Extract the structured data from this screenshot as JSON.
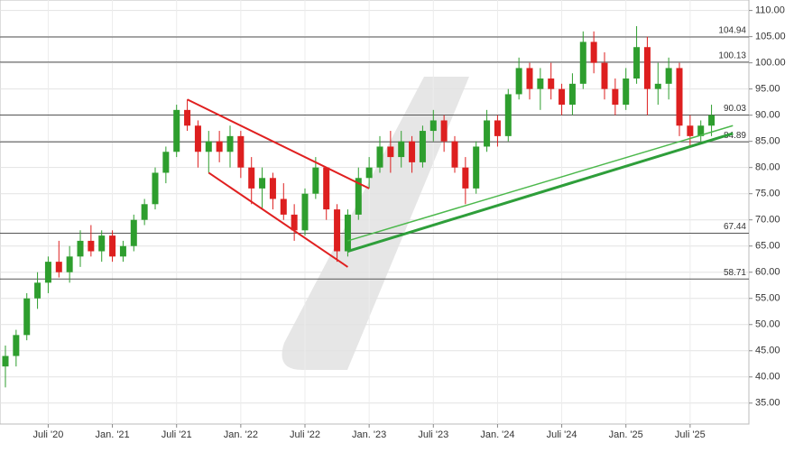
{
  "chart_data": {
    "type": "candlestick",
    "x": [
      "2020-03",
      "2020-04",
      "2020-05",
      "2020-06",
      "2020-07",
      "2020-08",
      "2020-09",
      "2020-10",
      "2020-11",
      "2020-12",
      "2021-01",
      "2021-02",
      "2021-03",
      "2021-04",
      "2021-05",
      "2021-06",
      "2021-07",
      "2021-08",
      "2021-09",
      "2021-10",
      "2021-11",
      "2021-12",
      "2022-01",
      "2022-02",
      "2022-03",
      "2022-04",
      "2022-05",
      "2022-06",
      "2022-07",
      "2022-08",
      "2022-09",
      "2022-10",
      "2022-11",
      "2022-12",
      "2023-01",
      "2023-02",
      "2023-03",
      "2023-04",
      "2023-05",
      "2023-06",
      "2023-07",
      "2023-08",
      "2023-09",
      "2023-10",
      "2023-11",
      "2023-12",
      "2024-01",
      "2024-02",
      "2024-03",
      "2024-04",
      "2024-05",
      "2024-06",
      "2024-07",
      "2024-08",
      "2024-09",
      "2024-10",
      "2024-11",
      "2024-12",
      "2025-01",
      "2025-02",
      "2025-03",
      "2025-04",
      "2025-05",
      "2025-06",
      "2025-07",
      "2025-08",
      "2025-09"
    ],
    "open": [
      42,
      44,
      48,
      55,
      58,
      62,
      60,
      63,
      66,
      64,
      67,
      63,
      65,
      70,
      73,
      79,
      83,
      91,
      88,
      83,
      85,
      83,
      86,
      80,
      76,
      78,
      74,
      71,
      68,
      75,
      80,
      72,
      64,
      71,
      78,
      80,
      84,
      82,
      85,
      81,
      87,
      89,
      85,
      80,
      76,
      84,
      89,
      86,
      94,
      99,
      95,
      97,
      95,
      92,
      96,
      104,
      100,
      95,
      92,
      97,
      103,
      95,
      96,
      99,
      88,
      86,
      88
    ],
    "high": [
      46,
      49,
      56,
      60,
      63,
      66,
      65,
      68,
      69,
      68,
      68,
      66,
      71,
      74,
      80,
      84,
      92,
      93,
      89,
      87,
      87,
      88,
      87,
      82,
      80,
      79,
      77,
      73,
      76,
      82,
      80,
      73,
      72,
      80,
      82,
      86,
      87,
      87,
      86,
      88,
      91,
      90,
      86,
      82,
      85,
      91,
      90,
      95,
      101,
      100,
      99,
      100,
      96,
      98,
      106,
      106,
      102,
      97,
      99,
      107,
      105,
      100,
      101,
      100,
      90,
      89,
      92
    ],
    "low": [
      38,
      42,
      47,
      53,
      56,
      59,
      58,
      61,
      63,
      62,
      62,
      62,
      64,
      69,
      72,
      77,
      82,
      87,
      80,
      79,
      81,
      80,
      78,
      73,
      72,
      72,
      70,
      66,
      67,
      74,
      70,
      62,
      63,
      70,
      76,
      79,
      79,
      80,
      79,
      80,
      85,
      83,
      79,
      73,
      75,
      83,
      84,
      85,
      93,
      93,
      91,
      93,
      90,
      90,
      95,
      98,
      93,
      90,
      91,
      96,
      90,
      92,
      93,
      86,
      84,
      85,
      86
    ],
    "close": [
      44,
      48,
      55,
      58,
      62,
      60,
      63,
      66,
      64,
      67,
      63,
      65,
      70,
      73,
      79,
      83,
      91,
      88,
      83,
      85,
      83,
      86,
      80,
      76,
      78,
      74,
      71,
      68,
      75,
      80,
      72,
      64,
      71,
      78,
      80,
      84,
      82,
      85,
      81,
      87,
      89,
      85,
      80,
      76,
      84,
      89,
      86,
      94,
      99,
      95,
      97,
      95,
      92,
      96,
      104,
      100,
      95,
      92,
      97,
      103,
      95,
      96,
      99,
      88,
      86,
      88,
      90
    ],
    "up_color": "#2e9e2e",
    "down_color": "#dd1f1f",
    "xlim": [
      "2020-03",
      "2026-01"
    ],
    "xticks": [
      {
        "value": "2020-07",
        "label": "Juli '20"
      },
      {
        "value": "2021-01",
        "label": "Jan. '21"
      },
      {
        "value": "2021-07",
        "label": "Juli '21"
      },
      {
        "value": "2022-01",
        "label": "Jan. '22"
      },
      {
        "value": "2022-07",
        "label": "Juli '22"
      },
      {
        "value": "2023-01",
        "label": "Jan. '23"
      },
      {
        "value": "2023-07",
        "label": "Juli '23"
      },
      {
        "value": "2024-01",
        "label": "Jan. '24"
      },
      {
        "value": "2024-07",
        "label": "Juli '24"
      },
      {
        "value": "2025-01",
        "label": "Jan. '25"
      },
      {
        "value": "2025-07",
        "label": "Juli '25"
      }
    ],
    "ylim": [
      31,
      112
    ],
    "yticks": [
      {
        "value": 35,
        "label": "35.00"
      },
      {
        "value": 40,
        "label": "40.00"
      },
      {
        "value": 45,
        "label": "45.00"
      },
      {
        "value": 50,
        "label": "50.00"
      },
      {
        "value": 55,
        "label": "55.00"
      },
      {
        "value": 60,
        "label": "60.00"
      },
      {
        "value": 65,
        "label": "65.00"
      },
      {
        "value": 70,
        "label": "70.00"
      },
      {
        "value": 75,
        "label": "75.00"
      },
      {
        "value": 80,
        "label": "80.00"
      },
      {
        "value": 85,
        "label": "85.00"
      },
      {
        "value": 90,
        "label": "90.00"
      },
      {
        "value": 95,
        "label": "95.00"
      },
      {
        "value": 100,
        "label": "100.00"
      },
      {
        "value": 105,
        "label": "105.00"
      },
      {
        "value": 110,
        "label": "110.00"
      }
    ],
    "grid": true,
    "levels": [
      104.94,
      100.13,
      90.03,
      84.89,
      67.44,
      58.71
    ],
    "trendlines": [
      {
        "color": "#e02020",
        "width": 2,
        "x": [
          "2021-08",
          "2023-01"
        ],
        "y": [
          93,
          76
        ]
      },
      {
        "color": "#e02020",
        "width": 2,
        "x": [
          "2021-10",
          "2022-11"
        ],
        "y": [
          79,
          61
        ]
      },
      {
        "color": "#2e9e3a",
        "width": 3,
        "x": [
          "2022-11",
          "2025-11"
        ],
        "y": [
          64,
          86.5
        ]
      },
      {
        "color": "#4cb84c",
        "width": 1.5,
        "x": [
          "2022-11",
          "2025-11"
        ],
        "y": [
          66,
          88
        ]
      }
    ]
  }
}
